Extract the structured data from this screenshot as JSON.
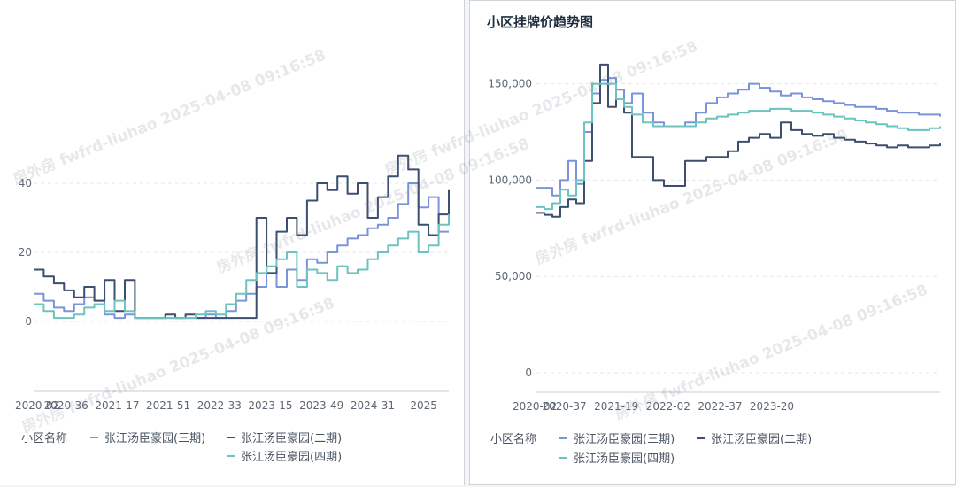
{
  "colors": {
    "phase3": "#7b93da",
    "phase2": "#3c4f6e",
    "phase4": "#6cc3bf",
    "grid": "#e3e7ec",
    "axis": "#c9ced6"
  },
  "watermark_text": "房外房 fwfrd-liuhao 2025-04-08 09:16:58",
  "chart_data": [
    {
      "type": "line",
      "title": "",
      "ylim": [
        0,
        50
      ],
      "y_ticks": [
        "0",
        "20",
        "40"
      ],
      "y_tick_values": [
        0,
        20,
        40
      ],
      "categories": [
        "2020-02",
        "2020-36",
        "2021-17",
        "2021-51",
        "2022-33",
        "2023-15",
        "2023-49",
        "2024-31",
        "2025"
      ],
      "legend_label": "小区名称",
      "series": [
        {
          "name": "张江汤臣豪园(三期)",
          "color_key": "phase3",
          "x": [
            0,
            0.2,
            0.4,
            0.6,
            0.8,
            1.0,
            1.2,
            1.4,
            1.6,
            1.8,
            2.0,
            2.2,
            2.4,
            2.6,
            2.8,
            3.0,
            3.2,
            3.4,
            3.6,
            3.8,
            4.0,
            4.2,
            4.4,
            4.6,
            4.8,
            5.0,
            5.2,
            5.4,
            5.6,
            5.8,
            6.0,
            6.2,
            6.4,
            6.6,
            6.8,
            7.0,
            7.2,
            7.4,
            7.6,
            7.8,
            8.0,
            8.2
          ],
          "values": [
            8,
            6,
            4,
            3,
            5,
            7,
            6,
            2,
            1,
            2,
            1,
            1,
            1,
            1,
            1,
            1,
            1,
            2,
            1,
            3,
            6,
            8,
            10,
            14,
            10,
            15,
            12,
            18,
            17,
            20,
            22,
            24,
            25,
            27,
            28,
            30,
            34,
            40,
            33,
            36,
            26,
            26
          ]
        },
        {
          "name": "张江汤臣豪园(二期)",
          "color_key": "phase2",
          "x": [
            0,
            0.2,
            0.4,
            0.6,
            0.8,
            1.0,
            1.2,
            1.4,
            1.6,
            1.8,
            2.0,
            2.2,
            2.4,
            2.6,
            2.8,
            3.0,
            3.2,
            3.4,
            3.6,
            3.8,
            4.0,
            4.2,
            4.4,
            4.6,
            4.8,
            5.0,
            5.2,
            5.4,
            5.6,
            5.8,
            6.0,
            6.2,
            6.4,
            6.6,
            6.8,
            7.0,
            7.2,
            7.4,
            7.6,
            7.8,
            8.0,
            8.2
          ],
          "values": [
            15,
            13,
            11,
            9,
            7,
            10,
            6,
            12,
            3,
            12,
            1,
            1,
            1,
            2,
            1,
            2,
            1,
            1,
            1,
            1,
            1,
            1,
            30,
            14,
            26,
            30,
            25,
            35,
            40,
            38,
            42,
            37,
            40,
            30,
            36,
            42,
            48,
            44,
            28,
            25,
            31,
            38
          ]
        },
        {
          "name": "张江汤臣豪园(四期)",
          "color_key": "phase4",
          "x": [
            0,
            0.2,
            0.4,
            0.6,
            0.8,
            1.0,
            1.2,
            1.4,
            1.6,
            1.8,
            2.0,
            2.2,
            2.4,
            2.6,
            2.8,
            3.0,
            3.2,
            3.4,
            3.6,
            3.8,
            4.0,
            4.2,
            4.4,
            4.6,
            4.8,
            5.0,
            5.2,
            5.4,
            5.6,
            5.8,
            6.0,
            6.2,
            6.4,
            6.6,
            6.8,
            7.0,
            7.2,
            7.4,
            7.6,
            7.8,
            8.0,
            8.2
          ],
          "values": [
            5,
            3,
            1,
            1,
            2,
            4,
            5,
            3,
            6,
            3,
            1,
            1,
            1,
            1,
            1,
            1,
            2,
            3,
            2,
            5,
            8,
            12,
            14,
            16,
            18,
            20,
            10,
            15,
            14,
            12,
            16,
            14,
            15,
            18,
            20,
            22,
            24,
            26,
            20,
            22,
            28,
            31
          ]
        }
      ]
    },
    {
      "type": "line",
      "title": "小区挂牌价趋势图",
      "ylim": [
        0,
        165000
      ],
      "y_ticks": [
        "0",
        "50,000",
        "100,000",
        "150,000"
      ],
      "y_tick_values": [
        0,
        50000,
        100000,
        150000
      ],
      "categories": [
        "2020-02",
        "2020-37",
        "2021-19",
        "2022-02",
        "2022-37",
        "2023-20"
      ],
      "legend_label": "小区名称",
      "series": [
        {
          "name": "张江汤臣豪园(三期)",
          "color_key": "phase3",
          "x": [
            0,
            0.15,
            0.3,
            0.45,
            0.6,
            0.75,
            0.9,
            1.05,
            1.2,
            1.35,
            1.5,
            1.65,
            1.8,
            2.0,
            2.2,
            2.4,
            2.6,
            2.8,
            3.0,
            3.2,
            3.4,
            3.6,
            3.8,
            4.0,
            4.2,
            4.4,
            4.6,
            4.8,
            5.0,
            5.2,
            5.4,
            5.6,
            5.8,
            6.0,
            6.2,
            6.4,
            6.6,
            6.8,
            7.0,
            7.2,
            7.4,
            7.6
          ],
          "values": [
            96000,
            96000,
            92000,
            100000,
            110000,
            98000,
            125000,
            145000,
            152000,
            153000,
            147000,
            140000,
            145000,
            135000,
            130000,
            128000,
            128000,
            130000,
            135000,
            140000,
            143000,
            145000,
            147000,
            150000,
            148000,
            146000,
            144000,
            145000,
            143000,
            142000,
            141000,
            140000,
            139000,
            138000,
            138000,
            137000,
            136000,
            135000,
            135000,
            134000,
            134000,
            133000
          ]
        },
        {
          "name": "张江汤臣豪园(二期)",
          "color_key": "phase2",
          "x": [
            0,
            0.15,
            0.3,
            0.45,
            0.6,
            0.75,
            0.9,
            1.05,
            1.2,
            1.35,
            1.5,
            1.65,
            1.8,
            2.0,
            2.2,
            2.4,
            2.6,
            2.8,
            3.0,
            3.2,
            3.4,
            3.6,
            3.8,
            4.0,
            4.2,
            4.4,
            4.6,
            4.8,
            5.0,
            5.2,
            5.4,
            5.6,
            5.8,
            6.0,
            6.2,
            6.4,
            6.6,
            6.8,
            7.0,
            7.2,
            7.4,
            7.6
          ],
          "values": [
            83000,
            82000,
            81000,
            86000,
            90000,
            88000,
            110000,
            140000,
            160000,
            138000,
            142000,
            135000,
            112000,
            112000,
            100000,
            97000,
            97000,
            110000,
            110000,
            112000,
            112000,
            115000,
            120000,
            122000,
            124000,
            122000,
            130000,
            126000,
            124000,
            123000,
            124000,
            122000,
            121000,
            120000,
            119000,
            118000,
            117000,
            118000,
            117000,
            117000,
            118000,
            119000
          ]
        },
        {
          "name": "张江汤臣豪园(四期)",
          "color_key": "phase4",
          "x": [
            0,
            0.15,
            0.3,
            0.45,
            0.6,
            0.75,
            0.9,
            1.05,
            1.2,
            1.35,
            1.5,
            1.65,
            1.8,
            2.0,
            2.2,
            2.4,
            2.6,
            2.8,
            3.0,
            3.2,
            3.4,
            3.6,
            3.8,
            4.0,
            4.2,
            4.4,
            4.6,
            4.8,
            5.0,
            5.2,
            5.4,
            5.6,
            5.8,
            6.0,
            6.2,
            6.4,
            6.6,
            6.8,
            7.0,
            7.2,
            7.4,
            7.6
          ],
          "values": [
            86000,
            85000,
            88000,
            95000,
            92000,
            100000,
            130000,
            150000,
            150000,
            150000,
            142000,
            138000,
            134000,
            130000,
            128000,
            128000,
            128000,
            128000,
            130000,
            132000,
            133000,
            134000,
            135000,
            136000,
            136000,
            137000,
            137000,
            136000,
            136000,
            135000,
            134000,
            133000,
            132000,
            131000,
            130000,
            129000,
            128000,
            127000,
            126000,
            126000,
            127000,
            128000
          ]
        }
      ]
    }
  ]
}
